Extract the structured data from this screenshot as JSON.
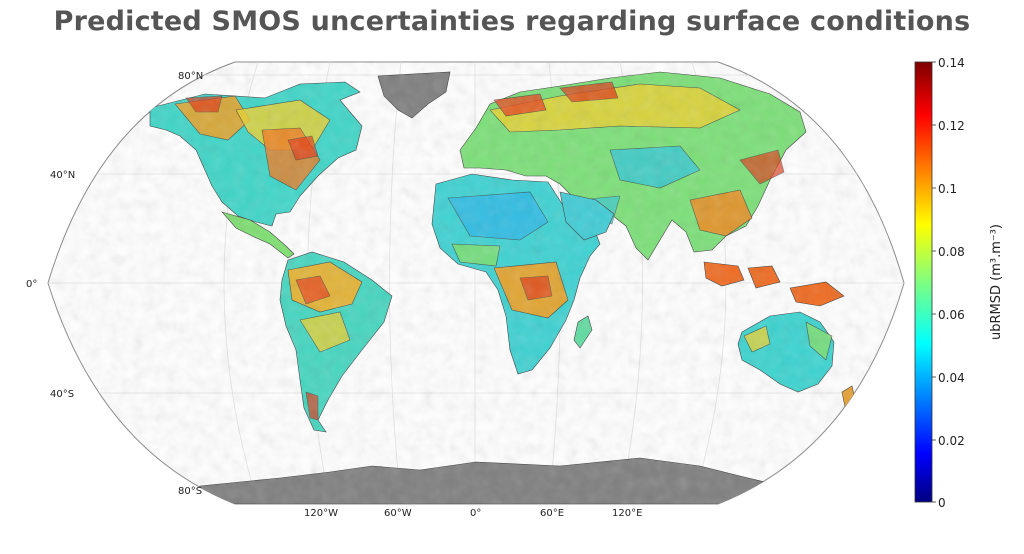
{
  "title": "Predicted SMOS uncertainties regarding surface conditions",
  "map": {
    "projection": "Robinson",
    "latitude_labels": [
      "80°N",
      "40°N",
      "0°",
      "40°S",
      "80°S"
    ],
    "longitude_labels": [
      "120°W",
      "60°W",
      "0°",
      "60°E",
      "120°E"
    ],
    "land_fill_colors": [
      "#2bd0e8",
      "#4fe0b0",
      "#7ee670",
      "#f0d830",
      "#f08a20",
      "#e03018",
      "#8a1010"
    ],
    "ice_color": "#7f7f7f"
  },
  "colorbar": {
    "title": "ubRMSD (m³.m⁻³)",
    "tick_labels": [
      "0.14",
      "0.12",
      "0.1",
      "0.08",
      "0.06",
      "0.04",
      "0.02",
      "0"
    ],
    "min": 0,
    "max": 0.14,
    "colormap": "jet"
  }
}
